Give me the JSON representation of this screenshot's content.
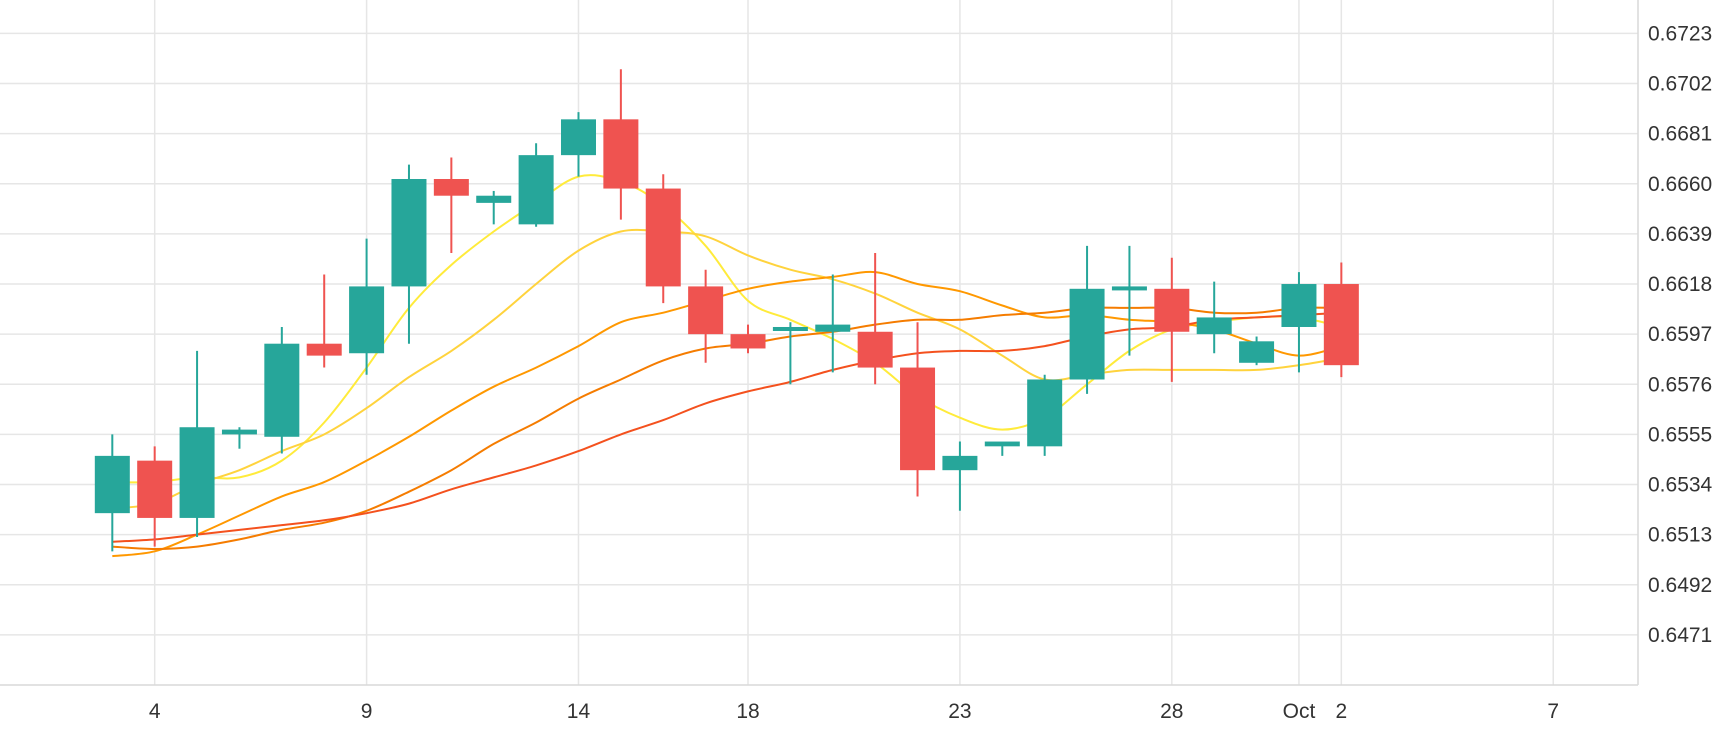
{
  "chart_data": {
    "type": "candlestick",
    "y_ticks": [
      "0.6471",
      "0.6492",
      "0.6513",
      "0.6534",
      "0.6555",
      "0.6576",
      "0.6597",
      "0.6618",
      "0.6639",
      "0.6660",
      "0.6681",
      "0.6702",
      "0.6723"
    ],
    "ylim": [
      0.645,
      0.6737
    ],
    "x_ticks": [
      {
        "label": "4",
        "day": 4
      },
      {
        "label": "9",
        "day": 9
      },
      {
        "label": "14",
        "day": 14
      },
      {
        "label": "18",
        "day": 18
      },
      {
        "label": "23",
        "day": 23
      },
      {
        "label": "28",
        "day": 28
      },
      {
        "label": "Oct",
        "day": 31
      },
      {
        "label": "2",
        "day": 32
      },
      {
        "label": "7",
        "day": 37
      }
    ],
    "xlim": [
      0.35,
      39.0
    ],
    "grid": true,
    "candles": [
      {
        "day": 3,
        "open": 0.6522,
        "high": 0.6555,
        "low": 0.6506,
        "close": 0.6546
      },
      {
        "day": 4,
        "open": 0.6544,
        "high": 0.655,
        "low": 0.6508,
        "close": 0.652
      },
      {
        "day": 5,
        "open": 0.652,
        "high": 0.659,
        "low": 0.6512,
        "close": 0.6558
      },
      {
        "day": 6,
        "open": 0.6555,
        "high": 0.6558,
        "low": 0.6549,
        "close": 0.6557
      },
      {
        "day": 7,
        "open": 0.6554,
        "high": 0.66,
        "low": 0.6547,
        "close": 0.6593
      },
      {
        "day": 8,
        "open": 0.6593,
        "high": 0.6622,
        "low": 0.6583,
        "close": 0.6588
      },
      {
        "day": 9,
        "open": 0.6589,
        "high": 0.6637,
        "low": 0.658,
        "close": 0.6617
      },
      {
        "day": 10,
        "open": 0.6617,
        "high": 0.6668,
        "low": 0.6593,
        "close": 0.6662
      },
      {
        "day": 11,
        "open": 0.6662,
        "high": 0.6671,
        "low": 0.6631,
        "close": 0.6655
      },
      {
        "day": 12,
        "open": 0.6652,
        "high": 0.6657,
        "low": 0.6643,
        "close": 0.6655
      },
      {
        "day": 13,
        "open": 0.6643,
        "high": 0.6677,
        "low": 0.6642,
        "close": 0.6672
      },
      {
        "day": 14,
        "open": 0.6672,
        "high": 0.669,
        "low": 0.6663,
        "close": 0.6687
      },
      {
        "day": 15,
        "open": 0.6687,
        "high": 0.6708,
        "low": 0.6645,
        "close": 0.6658
      },
      {
        "day": 16,
        "open": 0.6658,
        "high": 0.6664,
        "low": 0.661,
        "close": 0.6617
      },
      {
        "day": 17,
        "open": 0.6617,
        "high": 0.6624,
        "low": 0.6585,
        "close": 0.6597
      },
      {
        "day": 18,
        "open": 0.6597,
        "high": 0.6601,
        "low": 0.6589,
        "close": 0.6591
      },
      {
        "day": 19,
        "open": 0.6599,
        "high": 0.6602,
        "low": 0.6576,
        "close": 0.66
      },
      {
        "day": 20,
        "open": 0.6598,
        "high": 0.6622,
        "low": 0.6581,
        "close": 0.6601
      },
      {
        "day": 21,
        "open": 0.6598,
        "high": 0.6631,
        "low": 0.6576,
        "close": 0.6583
      },
      {
        "day": 22,
        "open": 0.6583,
        "high": 0.6602,
        "low": 0.6529,
        "close": 0.654
      },
      {
        "day": 23,
        "open": 0.654,
        "high": 0.6552,
        "low": 0.6523,
        "close": 0.6546
      },
      {
        "day": 24,
        "open": 0.655,
        "high": 0.6551,
        "low": 0.6546,
        "close": 0.6552
      },
      {
        "day": 25,
        "open": 0.655,
        "high": 0.658,
        "low": 0.6546,
        "close": 0.6578
      },
      {
        "day": 26,
        "open": 0.6578,
        "high": 0.6634,
        "low": 0.6572,
        "close": 0.6616
      },
      {
        "day": 27,
        "open": 0.6616,
        "high": 0.6634,
        "low": 0.6588,
        "close": 0.6617
      },
      {
        "day": 28,
        "open": 0.6616,
        "high": 0.6629,
        "low": 0.6577,
        "close": 0.6598
      },
      {
        "day": 29,
        "open": 0.6597,
        "high": 0.6619,
        "low": 0.6589,
        "close": 0.6604
      },
      {
        "day": 30,
        "open": 0.6585,
        "high": 0.6596,
        "low": 0.6584,
        "close": 0.6594
      },
      {
        "day": 31,
        "open": 0.66,
        "high": 0.6623,
        "low": 0.6581,
        "close": 0.6618
      },
      {
        "day": 32,
        "open": 0.6618,
        "high": 0.6627,
        "low": 0.6579,
        "close": 0.6584
      }
    ],
    "series": [
      {
        "color": "#ffeb3b",
        "points": [
          [
            3,
            0.6535
          ],
          [
            4,
            0.6535
          ],
          [
            5,
            0.6537
          ],
          [
            6,
            0.6537
          ],
          [
            7,
            0.6544
          ],
          [
            8,
            0.656
          ],
          [
            9,
            0.6583
          ],
          [
            10,
            0.6608
          ],
          [
            11,
            0.6626
          ],
          [
            12,
            0.664
          ],
          [
            13,
            0.6652
          ],
          [
            14,
            0.6663
          ],
          [
            15,
            0.6661
          ],
          [
            16,
            0.6651
          ],
          [
            17,
            0.6634
          ],
          [
            18,
            0.6611
          ],
          [
            19,
            0.6603
          ],
          [
            20,
            0.6595
          ],
          [
            21,
            0.6585
          ],
          [
            22,
            0.6571
          ],
          [
            23,
            0.6562
          ],
          [
            24,
            0.6557
          ],
          [
            25,
            0.6562
          ],
          [
            26,
            0.6576
          ],
          [
            27,
            0.659
          ],
          [
            28,
            0.6599
          ],
          [
            29,
            0.6602
          ],
          [
            30,
            0.6604
          ],
          [
            31,
            0.6604
          ],
          [
            32,
            0.66
          ]
        ]
      },
      {
        "color": "#ffd33d",
        "points": [
          [
            3,
            0.6524
          ],
          [
            4,
            0.6526
          ],
          [
            5,
            0.6534
          ],
          [
            6,
            0.654
          ],
          [
            7,
            0.6548
          ],
          [
            8,
            0.6555
          ],
          [
            9,
            0.6566
          ],
          [
            10,
            0.6579
          ],
          [
            11,
            0.659
          ],
          [
            12,
            0.6603
          ],
          [
            13,
            0.6618
          ],
          [
            14,
            0.6632
          ],
          [
            15,
            0.664
          ],
          [
            16,
            0.664
          ],
          [
            17,
            0.6638
          ],
          [
            18,
            0.663
          ],
          [
            19,
            0.6624
          ],
          [
            20,
            0.662
          ],
          [
            21,
            0.6614
          ],
          [
            22,
            0.6606
          ],
          [
            23,
            0.6599
          ],
          [
            24,
            0.6588
          ],
          [
            25,
            0.6578
          ],
          [
            26,
            0.658
          ],
          [
            27,
            0.6582
          ],
          [
            28,
            0.6582
          ],
          [
            29,
            0.6582
          ],
          [
            30,
            0.6582
          ],
          [
            31,
            0.6584
          ],
          [
            32,
            0.6587
          ]
        ]
      },
      {
        "color": "#ff9800",
        "points": [
          [
            3,
            0.6504
          ],
          [
            4,
            0.6506
          ],
          [
            5,
            0.6513
          ],
          [
            6,
            0.6521
          ],
          [
            7,
            0.6529
          ],
          [
            8,
            0.6535
          ],
          [
            9,
            0.6544
          ],
          [
            10,
            0.6554
          ],
          [
            11,
            0.6565
          ],
          [
            12,
            0.6575
          ],
          [
            13,
            0.6583
          ],
          [
            14,
            0.6592
          ],
          [
            15,
            0.6602
          ],
          [
            16,
            0.6606
          ],
          [
            17,
            0.6611
          ],
          [
            18,
            0.6616
          ],
          [
            19,
            0.6619
          ],
          [
            20,
            0.6621
          ],
          [
            21,
            0.6623
          ],
          [
            22,
            0.6618
          ],
          [
            23,
            0.6615
          ],
          [
            24,
            0.6609
          ],
          [
            25,
            0.6604
          ],
          [
            26,
            0.6605
          ],
          [
            27,
            0.6603
          ],
          [
            28,
            0.6602
          ],
          [
            29,
            0.6599
          ],
          [
            30,
            0.6593
          ],
          [
            31,
            0.6588
          ],
          [
            32,
            0.6592
          ]
        ]
      },
      {
        "color": "#f57c00",
        "points": [
          [
            3,
            0.6508
          ],
          [
            4,
            0.6507
          ],
          [
            5,
            0.6508
          ],
          [
            6,
            0.6511
          ],
          [
            7,
            0.6515
          ],
          [
            8,
            0.6518
          ],
          [
            9,
            0.6523
          ],
          [
            10,
            0.6531
          ],
          [
            11,
            0.654
          ],
          [
            12,
            0.6551
          ],
          [
            13,
            0.656
          ],
          [
            14,
            0.657
          ],
          [
            15,
            0.6578
          ],
          [
            16,
            0.6586
          ],
          [
            17,
            0.6591
          ],
          [
            18,
            0.6593
          ],
          [
            19,
            0.6596
          ],
          [
            20,
            0.6598
          ],
          [
            21,
            0.6601
          ],
          [
            22,
            0.6603
          ],
          [
            23,
            0.6603
          ],
          [
            24,
            0.6605
          ],
          [
            25,
            0.6606
          ],
          [
            26,
            0.6608
          ],
          [
            27,
            0.6608
          ],
          [
            28,
            0.6608
          ],
          [
            29,
            0.6606
          ],
          [
            30,
            0.6606
          ],
          [
            31,
            0.6608
          ],
          [
            32,
            0.6608
          ]
        ]
      },
      {
        "color": "#f4511e",
        "points": [
          [
            3,
            0.651
          ],
          [
            4,
            0.6511
          ],
          [
            5,
            0.6513
          ],
          [
            6,
            0.6515
          ],
          [
            7,
            0.6517
          ],
          [
            8,
            0.6519
          ],
          [
            9,
            0.6522
          ],
          [
            10,
            0.6526
          ],
          [
            11,
            0.6532
          ],
          [
            12,
            0.6537
          ],
          [
            13,
            0.6542
          ],
          [
            14,
            0.6548
          ],
          [
            15,
            0.6555
          ],
          [
            16,
            0.6561
          ],
          [
            17,
            0.6568
          ],
          [
            18,
            0.6573
          ],
          [
            19,
            0.6577
          ],
          [
            20,
            0.6582
          ],
          [
            21,
            0.6586
          ],
          [
            22,
            0.6589
          ],
          [
            23,
            0.659
          ],
          [
            24,
            0.659
          ],
          [
            25,
            0.6592
          ],
          [
            26,
            0.6596
          ],
          [
            27,
            0.6599
          ],
          [
            28,
            0.66
          ],
          [
            29,
            0.6603
          ],
          [
            30,
            0.6604
          ],
          [
            31,
            0.6605
          ],
          [
            32,
            0.6606
          ]
        ]
      }
    ],
    "colors": {
      "up": "#26a69a",
      "down": "#ef5350",
      "grid": "#e6e6e6"
    }
  }
}
